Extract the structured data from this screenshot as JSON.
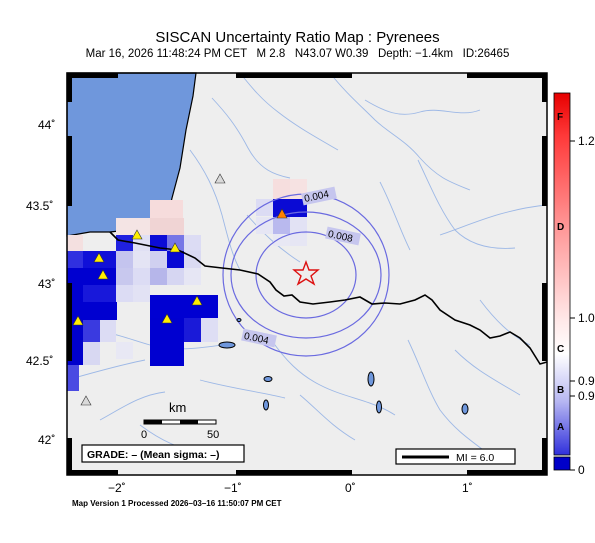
{
  "title": "SISCAN Uncertainty Ratio Map : Pyrenees",
  "subtitle": "Mar 16, 2026 11:48:24 PM CET   M 2.8   N43.07 W0.39   Depth: −1.4km   ID:26465",
  "footer": "Map Version 1 Processed 2026–03–16 11:50:07 PM CET",
  "map": {
    "lat_ticks": [
      "44˚",
      "43.5˚",
      "43˚",
      "42.5˚",
      "42˚"
    ],
    "lon_ticks": [
      "−2˚",
      "−1˚",
      "0˚",
      "1˚"
    ],
    "contours": [
      "0.004",
      "0.008",
      "0.004"
    ],
    "scale_bar": {
      "unit": "km",
      "ticks": [
        "0",
        "50"
      ]
    },
    "grade_box": "GRADE: – (Mean sigma: –)",
    "mi_box": "MI = 6.0",
    "epicenter_marker": "star-icon",
    "station_marker": "triangle-icon"
  },
  "colorbar": {
    "grade_labels": [
      "F",
      "D",
      "C",
      "B",
      "A"
    ],
    "value_labels": [
      "1.2",
      "1.0",
      "0.9",
      "0.9",
      "0"
    ],
    "colors": {
      "top": "#e60000",
      "mid": "#ffffff",
      "low": "#4d4dff",
      "bottom": "#0000c8"
    }
  }
}
